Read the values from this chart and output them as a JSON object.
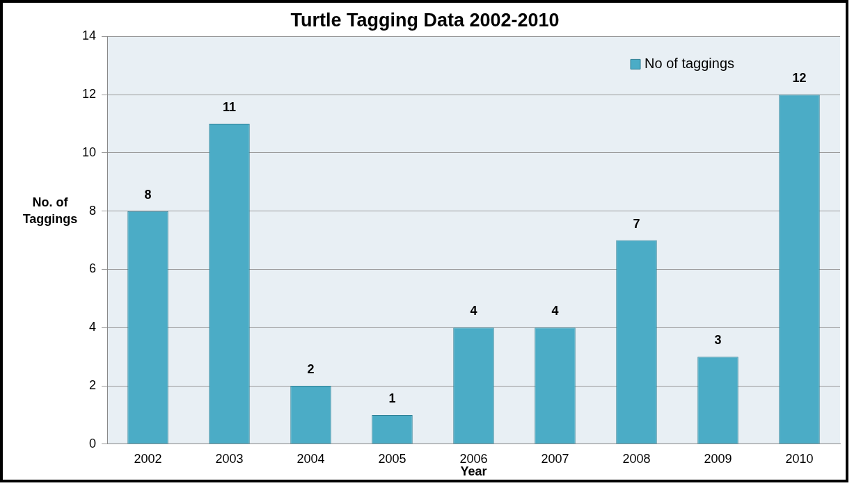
{
  "chart_data": {
    "type": "bar",
    "title": "Turtle Tagging Data 2002-2010",
    "xlabel": "Year",
    "ylabel": "No. of Taggings",
    "categories": [
      "2002",
      "2003",
      "2004",
      "2005",
      "2006",
      "2007",
      "2008",
      "2009",
      "2010"
    ],
    "series": [
      {
        "name": "No of taggings",
        "color": "#4bacc6",
        "values": [
          8,
          11,
          2,
          1,
          4,
          4,
          7,
          3,
          12
        ]
      }
    ],
    "ylim": [
      0,
      14
    ],
    "yticks": [
      0,
      2,
      4,
      6,
      8,
      10,
      12,
      14
    ],
    "grid": "y",
    "legend": "top right",
    "data_labels": true
  }
}
